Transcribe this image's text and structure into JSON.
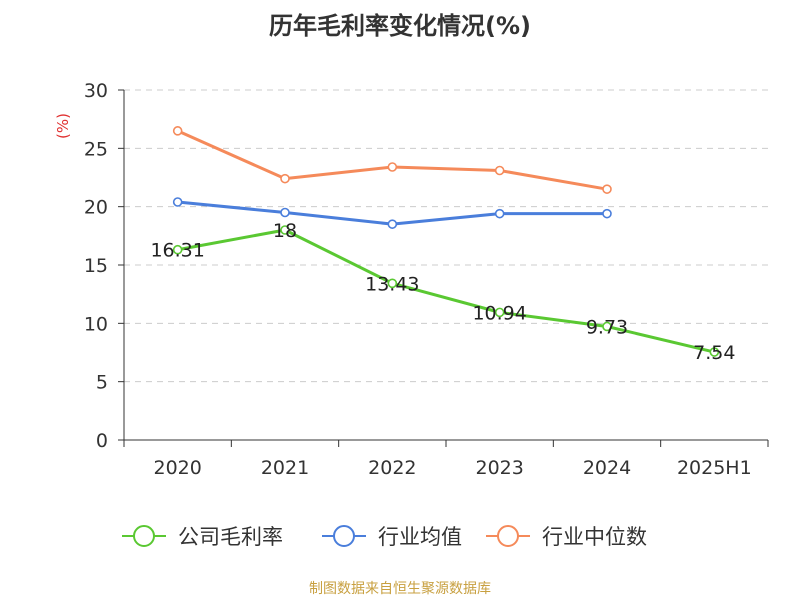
{
  "title": "历年毛利率变化情况(%)",
  "source": "制图数据来自恒生聚源数据库",
  "colors": {
    "source_text": "#c8a040",
    "ylabel": "#e03030",
    "axis": "#333333",
    "grid": "#cccccc"
  },
  "chart_data": {
    "type": "line",
    "title": "历年毛利率变化情况(%)",
    "xlabel": "",
    "ylabel": "(%)",
    "categories": [
      "2020",
      "2021",
      "2022",
      "2023",
      "2024",
      "2025H1"
    ],
    "ylim": [
      0,
      30
    ],
    "yticks": [
      0,
      5,
      10,
      15,
      20,
      25,
      30
    ],
    "grid": true,
    "legend_position": "bottom",
    "series": [
      {
        "name": "公司毛利率",
        "color": "#5ac832",
        "values": [
          16.31,
          18,
          13.43,
          10.94,
          9.73,
          7.54
        ],
        "labels": [
          "16.31",
          "18",
          "13.43",
          "10.94",
          "9.73",
          "7.54"
        ]
      },
      {
        "name": "行业均值",
        "color": "#4a7edb",
        "values": [
          20.4,
          19.5,
          18.5,
          19.4,
          19.4,
          null
        ]
      },
      {
        "name": "行业中位数",
        "color": "#f58a5a",
        "values": [
          26.5,
          22.4,
          23.4,
          23.1,
          21.5,
          null
        ]
      }
    ]
  }
}
